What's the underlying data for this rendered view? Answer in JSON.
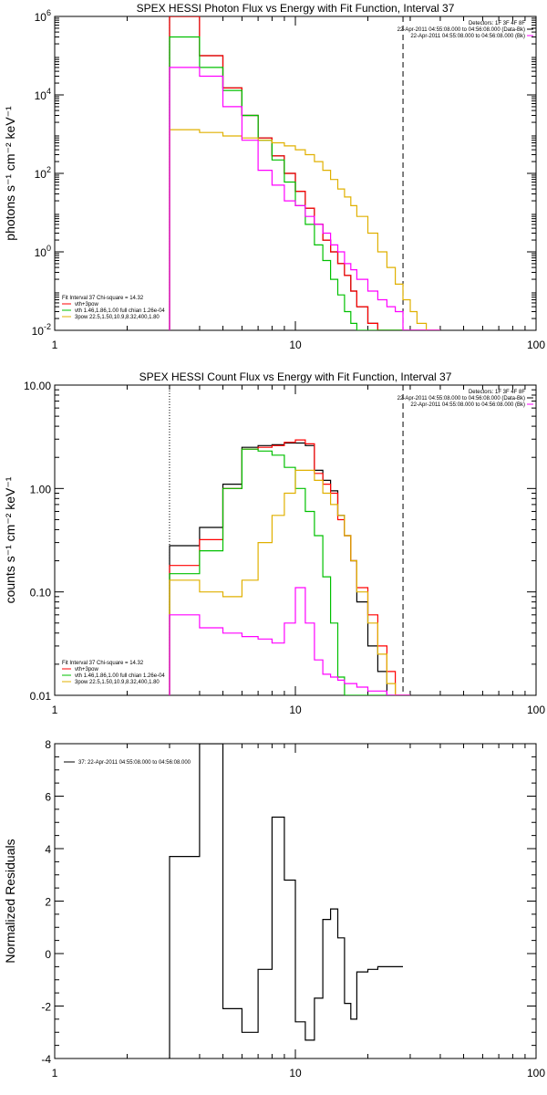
{
  "chart_data": [
    {
      "type": "line",
      "title": "SPEX HESSI Photon Flux vs Energy with Fit Function, Interval 37",
      "ylabel": "photons s⁻¹ cm⁻² keV⁻¹",
      "xscale": "log",
      "yscale": "log",
      "xlim": [
        1,
        100
      ],
      "ylim": [
        0.01,
        1000000
      ],
      "x_ticks": [
        "1",
        "10",
        "100"
      ],
      "y_ticks": [
        {
          "v": 0.01,
          "label": "10",
          "sup": "-2"
        },
        {
          "v": 1,
          "label": "10",
          "sup": "0"
        },
        {
          "v": 100,
          "label": "10",
          "sup": "2"
        },
        {
          "v": 10000,
          "label": "10",
          "sup": "4"
        },
        {
          "v": 1000000,
          "label": "10",
          "sup": "6"
        }
      ],
      "vlines": [
        {
          "x": 3,
          "style": "dotted"
        },
        {
          "x": 28,
          "style": "dashed"
        }
      ],
      "legend_tr": [
        "Detectors: 1F 3F 4F 8F",
        "22-Apr-2011 04:55:08.000 to 04:56:08.000 (Data-Bk)",
        "22-Apr-2011 04:55:08.000 to 04:56:08.000 (Bk)"
      ],
      "legend_bl": [
        "Fit Interval 37    Chi-square = 14.32",
        "vth+3pow",
        "vth 1.46,1.86,1.00  full chian 1.26e-04",
        "3pow 22.5,1.50,10.9,8.32,400,1.80"
      ],
      "edges": [
        3,
        4,
        5,
        6,
        7,
        8,
        9,
        10,
        11,
        12,
        13,
        14,
        15,
        16,
        17,
        18,
        20,
        22,
        24,
        26,
        28,
        30,
        32,
        35,
        40
      ],
      "series": [
        {
          "color": "#000000",
          "values": [
            1000000,
            100000,
            15000,
            3000,
            800,
            280,
            100,
            35,
            13,
            5,
            2,
            1,
            0.5,
            0.25,
            0.1,
            0.04,
            0.015,
            0.01,
            0.01,
            0.01,
            0.01,
            0.01,
            0.01,
            0.01
          ]
        },
        {
          "color": "#ff0000",
          "values": [
            1000000,
            100000,
            15000,
            3000,
            800,
            280,
            100,
            35,
            13,
            5,
            2,
            1,
            0.5,
            0.25,
            0.1,
            0.04,
            0.015,
            0.01,
            0.01,
            0.01,
            0.01,
            0.01,
            0.01,
            0.01
          ]
        },
        {
          "color": "#00c000",
          "values": [
            300000,
            50000,
            13000,
            3000,
            700,
            220,
            60,
            15,
            5,
            1.5,
            0.6,
            0.2,
            0.08,
            0.03,
            0.015,
            0.01,
            0.01,
            0.01,
            0.01,
            0.01,
            0.01,
            0.01,
            0.01,
            0.01
          ]
        },
        {
          "color": "#e0b000",
          "values": [
            1300,
            1100,
            900,
            800,
            700,
            600,
            500,
            400,
            300,
            200,
            120,
            70,
            40,
            25,
            15,
            8,
            3,
            1,
            0.4,
            0.15,
            0.06,
            0.03,
            0.015,
            0.01
          ]
        },
        {
          "color": "#ff00ff",
          "values": [
            50000,
            30000,
            5000,
            700,
            120,
            50,
            20,
            15,
            8,
            5,
            3,
            1.5,
            1,
            0.5,
            0.35,
            0.2,
            0.1,
            0.06,
            0.04,
            0.03,
            0.01,
            0.01,
            0.01,
            0.01
          ]
        }
      ]
    },
    {
      "type": "line",
      "title": "SPEX HESSI Count Flux vs Energy with Fit Function, Interval 37",
      "ylabel": "counts s⁻¹ cm⁻² keV⁻¹",
      "xscale": "log",
      "yscale": "log",
      "xlim": [
        1,
        100
      ],
      "ylim": [
        0.01,
        10
      ],
      "x_ticks": [
        "1",
        "10",
        "100"
      ],
      "y_ticks": [
        {
          "v": 0.01,
          "label": "0.01"
        },
        {
          "v": 0.1,
          "label": "0.10"
        },
        {
          "v": 1,
          "label": "1.00"
        },
        {
          "v": 10,
          "label": "10.00"
        }
      ],
      "vlines": [
        {
          "x": 3,
          "style": "dotted"
        },
        {
          "x": 28,
          "style": "dashed"
        }
      ],
      "legend_tr": [
        "Detectors: 1F 3F 4F 8F",
        "22-Apr-2011 04:55:08.000 to 04:56:08.000 (Data-Bk)",
        "22-Apr-2011 04:55:08.000 to 04:56:08.000 (Bk)"
      ],
      "legend_bl": [
        "Fit Interval 37    Chi-square = 14.32",
        "vth+3pow",
        "vth 1.46,1.86,1.00  full chian 1.26e-04",
        "3pow 22.5,1.50,10.9,8.32,400,1.80"
      ],
      "edges": [
        3,
        4,
        5,
        6,
        7,
        8,
        9,
        10,
        11,
        12,
        13,
        14,
        15,
        16,
        17,
        18,
        20,
        22,
        24,
        26,
        28,
        30
      ],
      "series": [
        {
          "color": "#000000",
          "values": [
            0.28,
            0.42,
            1.1,
            2.5,
            2.6,
            2.65,
            2.75,
            2.75,
            2.6,
            1.5,
            1.2,
            0.95,
            0.55,
            0.35,
            0.2,
            0.08,
            0.03,
            0.017,
            0.01,
            0.01,
            0.01
          ]
        },
        {
          "color": "#ff0000",
          "values": [
            0.18,
            0.32,
            1.0,
            2.4,
            2.5,
            2.6,
            2.8,
            2.95,
            2.7,
            1.4,
            1.1,
            0.9,
            0.5,
            0.35,
            0.2,
            0.11,
            0.06,
            0.03,
            0.017,
            0.01,
            0.01
          ]
        },
        {
          "color": "#00c000",
          "values": [
            0.15,
            0.25,
            1.0,
            2.4,
            2.3,
            2.1,
            1.6,
            1.0,
            0.6,
            0.35,
            0.14,
            0.05,
            0.015,
            0.01,
            0.01,
            0.01,
            0.01,
            0.01,
            0.01,
            0.01,
            0.01
          ]
        },
        {
          "color": "#e0b000",
          "values": [
            0.13,
            0.1,
            0.09,
            0.13,
            0.3,
            0.55,
            0.9,
            1.5,
            1.5,
            1.2,
            0.9,
            0.7,
            0.55,
            0.35,
            0.2,
            0.1,
            0.05,
            0.025,
            0.013,
            0.01,
            0.01
          ]
        },
        {
          "color": "#ff00ff",
          "values": [
            0.06,
            0.045,
            0.04,
            0.037,
            0.035,
            0.032,
            0.05,
            0.11,
            0.05,
            0.022,
            0.016,
            0.015,
            0.014,
            0.013,
            0.013,
            0.012,
            0.011,
            0.011,
            0.01,
            0.01,
            0.01
          ]
        }
      ]
    },
    {
      "type": "line",
      "title": "",
      "ylabel": "Normalized Residuals",
      "xscale": "log",
      "yscale": "linear",
      "xlim": [
        1,
        100
      ],
      "ylim": [
        -4,
        8
      ],
      "x_ticks": [
        "1",
        "10",
        "100"
      ],
      "y_ticks": [
        {
          "v": -4,
          "label": "-4"
        },
        {
          "v": -2,
          "label": "-2"
        },
        {
          "v": 0,
          "label": "0"
        },
        {
          "v": 2,
          "label": "2"
        },
        {
          "v": 4,
          "label": "4"
        },
        {
          "v": 6,
          "label": "6"
        },
        {
          "v": 8,
          "label": "8"
        }
      ],
      "legend_tl": [
        "37: 22-Apr-2011 04:55:08.000 to 04:56:08.000"
      ],
      "edges": [
        3,
        4,
        5,
        6,
        7,
        8,
        9,
        10,
        11,
        12,
        13,
        14,
        15,
        16,
        17,
        18,
        20,
        22,
        24,
        26,
        28
      ],
      "series": [
        {
          "color": "#000000",
          "values": [
            3.7,
            8.0,
            -2.1,
            -3.0,
            -0.6,
            5.2,
            2.8,
            -2.6,
            -3.3,
            -1.7,
            1.3,
            1.7,
            0.6,
            -1.9,
            -2.5,
            -0.7,
            -0.6,
            -0.5,
            -0.5,
            -0.5
          ]
        }
      ]
    }
  ]
}
